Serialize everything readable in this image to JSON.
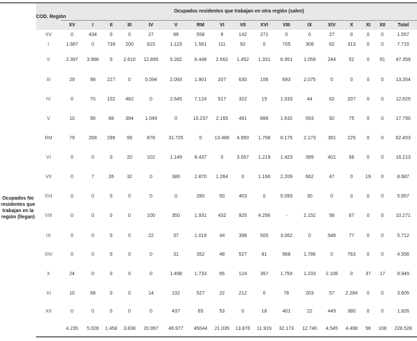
{
  "header": {
    "cod_region": "COD. Región",
    "super_title": "Ocupados residentes que trabajan en otra región (salen)",
    "columns": [
      "XV",
      "I",
      "II",
      "III",
      "IV",
      "V",
      "RM",
      "VI",
      "VII",
      "XVI",
      "VIII",
      "IX",
      "XIV",
      "X",
      "XI",
      "XII",
      "Total"
    ]
  },
  "side_label": "Ocupados No residentes que trabajan en la región (llegan)",
  "rows": [
    {
      "code": "XV",
      "values": [
        "0",
        "434",
        "0",
        "0",
        "27",
        "89",
        "558",
        "9",
        "142",
        "271",
        "0",
        "0",
        "27",
        "0",
        "0",
        "0",
        "1.557"
      ]
    },
    {
      "code": "I",
      "values": [
        "1.687",
        "0",
        "739",
        "200",
        "815",
        "1.123",
        "1.561",
        "111",
        "92",
        "0",
        "705",
        "308",
        "62",
        "313",
        "0",
        "0",
        "7.715"
      ]
    },
    {
      "code": "II",
      "values": [
        "2.397",
        "3.986",
        "0",
        "2.610",
        "12.895",
        "5.282",
        "6.448",
        "2.562",
        "1.452",
        "1.331",
        "6.951",
        "1.059",
        "244",
        "52",
        "0",
        "91",
        "47.359"
      ]
    },
    {
      "code": "III",
      "values": [
        "29",
        "98",
        "227",
        "0",
        "5.094",
        "2.093",
        "1.901",
        "207",
        "630",
        "106",
        "693",
        "2.075",
        "0",
        "0",
        "0",
        "0",
        "13.354"
      ]
    },
    {
      "code": "IV",
      "values": [
        "0",
        "70",
        "102",
        "482",
        "0",
        "2.645",
        "7.124",
        "517",
        "322",
        "15",
        "1.033",
        "44",
        "62",
        "207",
        "0",
        "0",
        "12.625"
      ]
    },
    {
      "code": "V",
      "values": [
        "10",
        "96",
        "68",
        "394",
        "1.049",
        "0",
        "10.237",
        "2.165",
        "491",
        "886",
        "1.632",
        "593",
        "92",
        "75",
        "0",
        "0",
        "17.790"
      ]
    },
    {
      "code": "RM",
      "values": [
        "79",
        "268",
        "296",
        "99",
        "878",
        "31.725",
        "0",
        "13.486",
        "4.950",
        "1.708",
        "6.175",
        "2.173",
        "391",
        "225",
        "0",
        "0",
        "62.453"
      ]
    },
    {
      "code": "VI",
      "values": [
        "0",
        "0",
        "0",
        "20",
        "102",
        "1.149",
        "8.437",
        "0",
        "3.007",
        "1.219",
        "1.423",
        "399",
        "401",
        "56",
        "0",
        "0",
        "16.213"
      ]
    },
    {
      "code": "VII",
      "values": [
        "0",
        "7",
        "26",
        "32",
        "0",
        "386",
        "2.870",
        "1.264",
        "0",
        "1.166",
        "2.209",
        "662",
        "47",
        "0",
        "19",
        "0",
        "8.687"
      ]
    },
    {
      "code": "XVI",
      "values": [
        "0",
        "0",
        "0",
        "0",
        "0",
        "0",
        "280",
        "50",
        "403",
        "0",
        "5.093",
        "30",
        "0",
        "0",
        "0",
        "0",
        "5.857"
      ]
    },
    {
      "code": "VIII",
      "values": [
        "0",
        "0",
        "0",
        "0",
        "100",
        "350",
        "1.931",
        "432",
        "925",
        "4.256",
        "-",
        "2.152",
        "58",
        "67",
        "0",
        "0",
        "10.271"
      ]
    },
    {
      "code": "IX",
      "values": [
        "0",
        "0",
        "0",
        "0",
        "22",
        "37",
        "1.019",
        "44",
        "398",
        "505",
        "3.062",
        "0",
        "548",
        "77",
        "0",
        "0",
        "5.712"
      ]
    },
    {
      "code": "XIV",
      "values": [
        "0",
        "0",
        "0",
        "0",
        "0",
        "31",
        "352",
        "48",
        "527",
        "81",
        "968",
        "1.786",
        "0",
        "763",
        "0",
        "0",
        "4.556"
      ]
    },
    {
      "code": "X",
      "values": [
        "24",
        "0",
        "0",
        "0",
        "0",
        "1.498",
        "1.733",
        "65",
        "124",
        "357",
        "1.754",
        "1.233",
        "2.108",
        "0",
        "37",
        "17",
        "8.949"
      ]
    },
    {
      "code": "XI",
      "values": [
        "10",
        "68",
        "0",
        "0",
        "14",
        "132",
        "527",
        "22",
        "212",
        "0",
        "76",
        "203",
        "57",
        "2.284",
        "0",
        "0",
        "3.605"
      ]
    },
    {
      "code": "XII",
      "values": [
        "0",
        "0",
        "0",
        "0",
        "0",
        "437",
        "65",
        "53",
        "0",
        "18",
        "401",
        "22",
        "449",
        "380",
        "0",
        "0",
        "1.826"
      ]
    },
    {
      "code": "",
      "values": [
        "4.235",
        "5.028",
        "1.458",
        "3.838",
        "20.997",
        "46.977",
        "45044",
        "21.035",
        "13.876",
        "11.919",
        "32.173",
        "12.740",
        "4.545",
        "4.498",
        "56",
        "108",
        "228.528"
      ]
    }
  ]
}
